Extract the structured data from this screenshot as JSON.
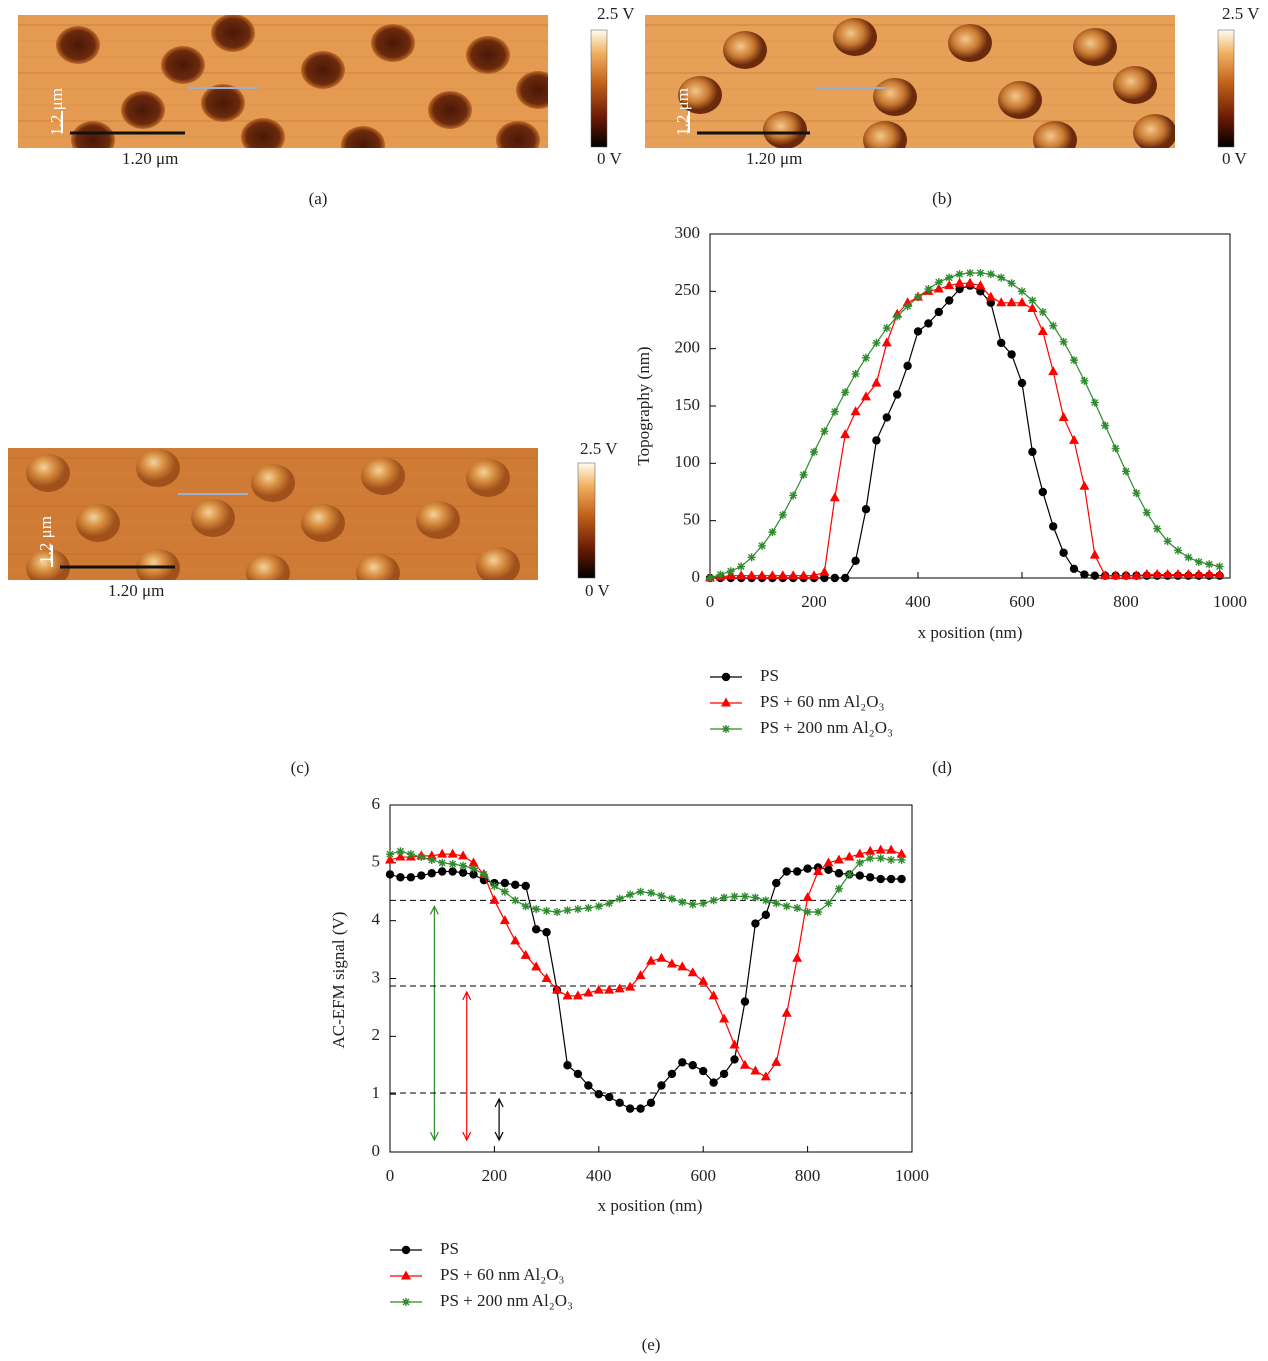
{
  "panels": [
    {
      "label": "(a)",
      "colorbar_max": "2.5 V",
      "colorbar_min": "0 V",
      "scale_bar": "1.20 μm",
      "scale_bar_vertical": "1.2 μm"
    },
    {
      "label": "(b)",
      "colorbar_max": "2.5 V",
      "colorbar_min": "0 V",
      "scale_bar": "1.20 μm",
      "scale_bar_vertical": "1.2 μm"
    },
    {
      "label": "(c)",
      "colorbar_max": "2.5 V",
      "colorbar_min": "0 V",
      "scale_bar": "1.20 μm",
      "scale_bar_vertical": "1.2 μm"
    }
  ],
  "chart_data": [
    {
      "type": "line",
      "label": "(d)",
      "x_label": "x position (nm)",
      "y_label": "Topography (nm)",
      "xlim": [
        0,
        1000
      ],
      "ylim": [
        0,
        300
      ],
      "xticks": [
        0,
        200,
        400,
        600,
        800,
        1000
      ],
      "yticks": [
        0,
        50,
        100,
        150,
        200,
        250,
        300
      ],
      "x": [
        0,
        20,
        40,
        60,
        80,
        100,
        120,
        140,
        160,
        180,
        200,
        220,
        240,
        260,
        280,
        300,
        320,
        340,
        360,
        380,
        400,
        420,
        440,
        460,
        480,
        500,
        520,
        540,
        560,
        580,
        600,
        620,
        640,
        660,
        680,
        700,
        720,
        740,
        760,
        780,
        800,
        820,
        840,
        860,
        880,
        900,
        920,
        940,
        960,
        980
      ],
      "series": [
        {
          "name": "PS",
          "color": "#000000",
          "marker": "circle",
          "values": [
            0,
            0,
            0,
            0,
            0,
            0,
            0,
            0,
            0,
            0,
            0,
            0,
            0,
            0,
            15,
            60,
            120,
            140,
            160,
            185,
            215,
            222,
            232,
            242,
            252,
            255,
            250,
            240,
            205,
            195,
            170,
            110,
            75,
            45,
            22,
            8,
            3,
            2,
            2,
            2,
            2,
            2,
            2,
            2,
            2,
            2,
            2,
            2,
            2,
            2
          ]
        },
        {
          "name": "PS + 60 nm Al₂O₃",
          "color": "#ff0000",
          "marker": "triangle",
          "values": [
            0,
            1,
            2,
            2,
            2,
            2,
            2,
            2,
            2,
            2,
            2,
            5,
            70,
            125,
            145,
            158,
            170,
            205,
            230,
            240,
            245,
            250,
            252,
            255,
            257,
            257,
            255,
            245,
            240,
            240,
            240,
            235,
            215,
            180,
            140,
            120,
            80,
            20,
            2,
            2,
            2,
            2,
            3,
            3,
            3,
            3,
            3,
            3,
            3,
            3
          ]
        },
        {
          "name": "PS + 200 nm Al₂O₃",
          "color": "#2e8b2e",
          "marker": "star",
          "values": [
            0,
            3,
            6,
            10,
            18,
            28,
            40,
            55,
            72,
            90,
            110,
            128,
            145,
            162,
            178,
            192,
            205,
            218,
            228,
            237,
            245,
            252,
            258,
            262,
            265,
            266,
            266,
            265,
            262,
            257,
            250,
            242,
            232,
            220,
            206,
            190,
            172,
            153,
            133,
            113,
            93,
            74,
            57,
            43,
            32,
            24,
            18,
            14,
            12,
            10
          ]
        }
      ]
    },
    {
      "type": "line",
      "label": "(e)",
      "x_label": "x position (nm)",
      "y_label": "AC-EFM signal (V)",
      "xlim": [
        0,
        1000
      ],
      "ylim": [
        0,
        6
      ],
      "xticks": [
        0,
        200,
        400,
        600,
        800,
        1000
      ],
      "yticks": [
        0,
        1,
        2,
        3,
        4,
        5,
        6
      ],
      "reference_lines": [
        4.35,
        2.87,
        1.02
      ],
      "x": [
        0,
        20,
        40,
        60,
        80,
        100,
        120,
        140,
        160,
        180,
        200,
        220,
        240,
        260,
        280,
        300,
        320,
        340,
        360,
        380,
        400,
        420,
        440,
        460,
        480,
        500,
        520,
        540,
        560,
        580,
        600,
        620,
        640,
        660,
        680,
        700,
        720,
        740,
        760,
        780,
        800,
        820,
        840,
        860,
        880,
        900,
        920,
        940,
        960,
        980
      ],
      "series": [
        {
          "name": "PS",
          "color": "#000000",
          "marker": "circle",
          "values": [
            4.8,
            4.75,
            4.75,
            4.78,
            4.82,
            4.85,
            4.85,
            4.83,
            4.8,
            4.7,
            4.65,
            4.65,
            4.62,
            4.6,
            3.85,
            3.8,
            2.8,
            1.5,
            1.35,
            1.15,
            1.0,
            0.95,
            0.85,
            0.75,
            0.75,
            0.85,
            1.15,
            1.35,
            1.55,
            1.5,
            1.4,
            1.2,
            1.35,
            1.6,
            2.6,
            3.95,
            4.1,
            4.65,
            4.85,
            4.85,
            4.9,
            4.92,
            4.88,
            4.82,
            4.8,
            4.78,
            4.75,
            4.72,
            4.72,
            4.72
          ]
        },
        {
          "name": "PS + 60 nm Al₂O₃",
          "color": "#ff0000",
          "marker": "triangle",
          "values": [
            5.05,
            5.1,
            5.1,
            5.12,
            5.12,
            5.15,
            5.15,
            5.12,
            5.0,
            4.8,
            4.35,
            4.0,
            3.65,
            3.4,
            3.2,
            3.0,
            2.8,
            2.7,
            2.7,
            2.75,
            2.8,
            2.8,
            2.82,
            2.85,
            3.05,
            3.3,
            3.35,
            3.25,
            3.2,
            3.1,
            2.95,
            2.7,
            2.3,
            1.85,
            1.5,
            1.4,
            1.3,
            1.55,
            2.4,
            3.35,
            4.4,
            4.85,
            5.0,
            5.05,
            5.1,
            5.15,
            5.2,
            5.22,
            5.22,
            5.15
          ]
        },
        {
          "name": "PS + 200 nm Al₂O₃",
          "color": "#2e8b2e",
          "marker": "star",
          "values": [
            5.15,
            5.2,
            5.15,
            5.1,
            5.05,
            5.0,
            4.98,
            4.95,
            4.9,
            4.8,
            4.6,
            4.5,
            4.35,
            4.25,
            4.2,
            4.17,
            4.15,
            4.18,
            4.2,
            4.22,
            4.25,
            4.3,
            4.38,
            4.45,
            4.5,
            4.48,
            4.43,
            4.38,
            4.32,
            4.28,
            4.3,
            4.35,
            4.4,
            4.42,
            4.42,
            4.4,
            4.35,
            4.3,
            4.25,
            4.22,
            4.15,
            4.15,
            4.3,
            4.55,
            4.8,
            5.0,
            5.08,
            5.08,
            5.05,
            5.05
          ]
        }
      ]
    }
  ]
}
